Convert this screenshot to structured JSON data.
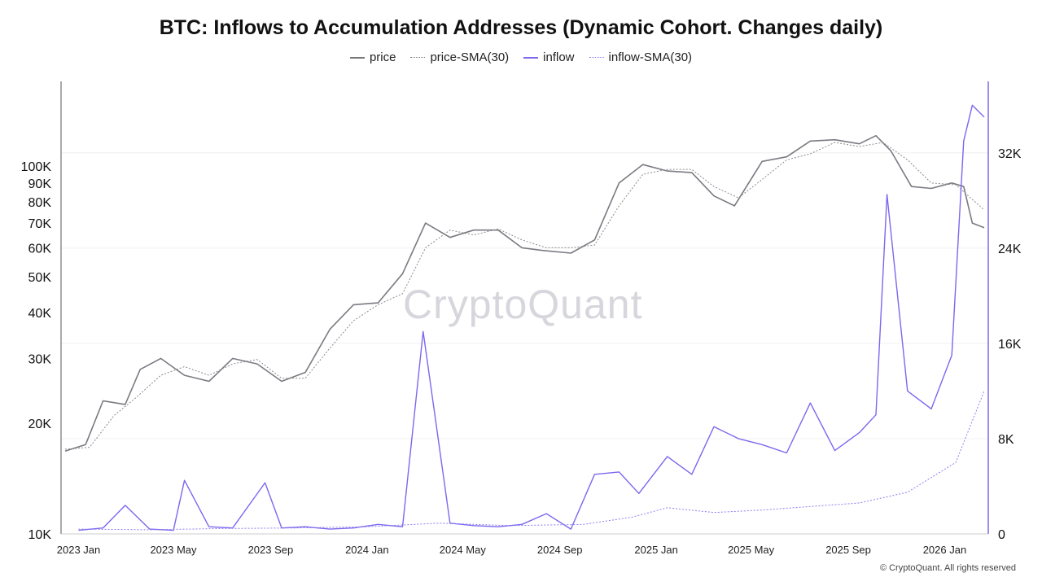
{
  "chart_data": {
    "type": "line",
    "title": "BTC: Inflows to Accumulation Addresses (Dynamic Cohort. Changes daily)",
    "legend": [
      {
        "name": "price",
        "color": "#7a7a82",
        "style": "solid"
      },
      {
        "name": "price-SMA(30)",
        "color": "#8a8a8a",
        "style": "dotted"
      },
      {
        "name": "inflow",
        "color": "#7b68ee",
        "style": "solid"
      },
      {
        "name": "inflow-SMA(30)",
        "color": "#8c7ff0",
        "style": "dotted"
      }
    ],
    "x_ticks": [
      "2023 Jan",
      "2023 May",
      "2023 Sep",
      "2024 Jan",
      "2024 May",
      "2024 Sep",
      "2025 Jan",
      "2025 May",
      "2025 Sep",
      "2026 Jan"
    ],
    "y_left": {
      "scale": "log",
      "ticks": [
        "100K",
        "90K",
        "80K",
        "70K",
        "60K",
        "50K",
        "40K",
        "30K",
        "20K",
        "10K"
      ],
      "range": [
        10000,
        170000
      ]
    },
    "y_right": {
      "scale": "linear",
      "ticks": [
        "32K",
        "24K",
        "16K",
        "8K",
        "0"
      ],
      "range": [
        0,
        38000
      ]
    },
    "grid": true,
    "legend_position": "top-center",
    "series": [
      {
        "name": "price",
        "axis": "left",
        "x": [
          "2022-12-15",
          "2023-01-10",
          "2023-02-01",
          "2023-03-01",
          "2023-03-20",
          "2023-04-15",
          "2023-05-15",
          "2023-06-15",
          "2023-07-15",
          "2023-08-15",
          "2023-09-15",
          "2023-10-15",
          "2023-11-15",
          "2023-12-15",
          "2024-01-15",
          "2024-02-15",
          "2024-03-15",
          "2024-04-15",
          "2024-05-15",
          "2024-06-15",
          "2024-07-15",
          "2024-08-10",
          "2024-09-15",
          "2024-10-15",
          "2024-11-15",
          "2024-12-15",
          "2025-01-15",
          "2025-02-15",
          "2025-03-15",
          "2025-04-10",
          "2025-05-15",
          "2025-06-15",
          "2025-07-15",
          "2025-08-15",
          "2025-09-15",
          "2025-10-06",
          "2025-10-25",
          "2025-11-20",
          "2025-12-15",
          "2026-01-10",
          "2026-01-25",
          "2026-02-05",
          "2026-02-20"
        ],
        "y": [
          16800,
          17500,
          23000,
          22500,
          28000,
          30000,
          27000,
          26000,
          30000,
          29000,
          26000,
          27500,
          36000,
          42000,
          42500,
          51000,
          70000,
          64000,
          67000,
          67000,
          60000,
          59000,
          58000,
          63000,
          90000,
          101000,
          97000,
          96000,
          83000,
          78000,
          103000,
          106000,
          117000,
          118000,
          115000,
          121000,
          110000,
          88000,
          87000,
          90000,
          88000,
          70000,
          68000
        ]
      },
      {
        "name": "price-SMA(30)",
        "axis": "left",
        "x": [
          "2022-12-15",
          "2023-01-15",
          "2023-02-15",
          "2023-03-15",
          "2023-04-15",
          "2023-05-15",
          "2023-06-15",
          "2023-07-15",
          "2023-08-15",
          "2023-09-15",
          "2023-10-15",
          "2023-11-15",
          "2023-12-15",
          "2024-01-15",
          "2024-02-15",
          "2024-03-15",
          "2024-04-15",
          "2024-05-15",
          "2024-06-15",
          "2024-07-15",
          "2024-08-15",
          "2024-09-15",
          "2024-10-15",
          "2024-11-15",
          "2024-12-15",
          "2025-01-15",
          "2025-02-15",
          "2025-03-15",
          "2025-04-15",
          "2025-05-15",
          "2025-06-15",
          "2025-07-15",
          "2025-08-15",
          "2025-09-15",
          "2025-10-15",
          "2025-11-15",
          "2025-12-15",
          "2026-01-15",
          "2026-02-20"
        ],
        "y": [
          17000,
          17200,
          21000,
          23500,
          27000,
          28500,
          27000,
          29000,
          29800,
          26500,
          26500,
          32000,
          38000,
          42000,
          45000,
          60000,
          67000,
          65000,
          67500,
          63000,
          60000,
          60000,
          61000,
          78000,
          95000,
          98000,
          98000,
          88000,
          82000,
          92000,
          104000,
          108000,
          116000,
          113000,
          116000,
          104000,
          90000,
          89000,
          76000
        ]
      },
      {
        "name": "inflow",
        "axis": "right",
        "x": [
          "2023-01-01",
          "2023-02-01",
          "2023-03-01",
          "2023-04-01",
          "2023-05-01",
          "2023-05-15",
          "2023-06-15",
          "2023-07-15",
          "2023-08-25",
          "2023-09-15",
          "2023-10-15",
          "2023-11-15",
          "2023-12-15",
          "2024-01-15",
          "2024-02-15",
          "2024-03-12",
          "2024-04-15",
          "2024-05-15",
          "2024-06-15",
          "2024-07-15",
          "2024-08-15",
          "2024-09-15",
          "2024-10-15",
          "2024-11-15",
          "2024-12-10",
          "2025-01-15",
          "2025-02-15",
          "2025-03-15",
          "2025-04-15",
          "2025-05-15",
          "2025-06-15",
          "2025-07-15",
          "2025-08-15",
          "2025-09-15",
          "2025-10-06",
          "2025-10-20",
          "2025-11-15",
          "2025-12-15",
          "2026-01-10",
          "2026-01-25",
          "2026-02-05",
          "2026-02-20"
        ],
        "y": [
          300,
          500,
          2400,
          400,
          300,
          4500,
          600,
          500,
          4300,
          500,
          600,
          400,
          500,
          800,
          600,
          17000,
          900,
          700,
          600,
          800,
          1700,
          400,
          5000,
          5200,
          3400,
          6500,
          5000,
          9000,
          8000,
          7500,
          6800,
          11000,
          7000,
          8500,
          10000,
          28500,
          12000,
          10500,
          15000,
          33000,
          36000,
          35000
        ]
      },
      {
        "name": "inflow-SMA(30)",
        "axis": "right",
        "x": [
          "2023-01-01",
          "2023-04-01",
          "2023-07-01",
          "2023-10-01",
          "2024-01-01",
          "2024-04-01",
          "2024-07-01",
          "2024-10-01",
          "2024-12-01",
          "2025-01-15",
          "2025-03-15",
          "2025-05-15",
          "2025-07-15",
          "2025-09-15",
          "2025-11-15",
          "2026-01-15",
          "2026-02-20"
        ],
        "y": [
          400,
          350,
          450,
          500,
          600,
          900,
          700,
          800,
          1400,
          2200,
          1800,
          2000,
          2300,
          2600,
          3500,
          6000,
          12000
        ]
      }
    ]
  },
  "watermark": "CryptoQuant",
  "copyright": "© CryptoQuant. All rights reserved"
}
